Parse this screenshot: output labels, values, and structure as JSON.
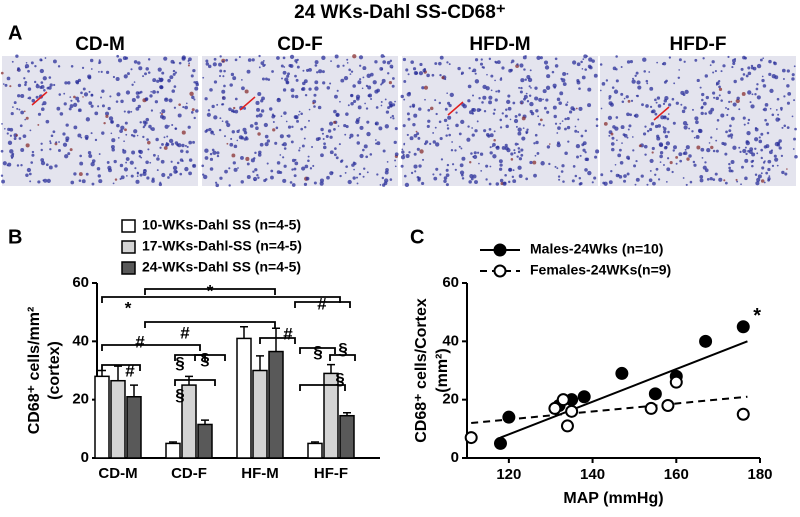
{
  "title": "24 WKs-Dahl SS-CD68⁺",
  "panel_a": {
    "label": "A",
    "images": [
      "CD-M",
      "CD-F",
      "HFD-M",
      "HFD-F"
    ]
  },
  "chart_data": [
    {
      "type": "bar",
      "panel": "B",
      "ylabel": "CD68⁺ cells/mm²",
      "ylabel2": "(cortex)",
      "categories": [
        "CD-M",
        "CD-F",
        "HF-M",
        "HF-F"
      ],
      "series": [
        {
          "name": "10-WKs-Dahl SS (n=4-5)",
          "color": "#ffffff",
          "values": [
            28,
            5,
            41,
            5
          ],
          "errors": [
            2,
            0.5,
            4,
            0.5
          ]
        },
        {
          "name": "17-WKs-Dahl-SS (n=4-5)",
          "color": "#d4d4d4",
          "values": [
            26.5,
            25,
            30,
            29
          ],
          "errors": [
            5,
            3,
            5,
            3
          ]
        },
        {
          "name": "24-WKs-Dahl SS (n=4-5)",
          "color": "#595959",
          "values": [
            21,
            11.5,
            36.5,
            14.5
          ],
          "errors": [
            4,
            1.5,
            8,
            1
          ]
        }
      ],
      "ylim": [
        0,
        60
      ],
      "yticks": [
        0,
        20,
        40,
        60
      ],
      "annotations": [
        "*",
        "*",
        "#",
        "#",
        "#",
        "#",
        "#",
        "§",
        "§",
        "§",
        "§",
        "§",
        "§"
      ]
    },
    {
      "type": "scatter",
      "panel": "C",
      "xlabel": "MAP (mmHg)",
      "ylabel": "CD68⁺ cells/Cortex",
      "ylabel2": "(mm²)",
      "series": [
        {
          "name": "Males-24Wks (n=10)",
          "color": "#000000",
          "filled": true,
          "x": [
            118,
            120,
            132,
            135,
            138,
            147,
            155,
            160,
            167,
            176
          ],
          "values": [
            5,
            14,
            18,
            20,
            21,
            29,
            22,
            28,
            40,
            45
          ],
          "trend_x": [
            118,
            177
          ],
          "trend_values": [
            7,
            40
          ]
        },
        {
          "name": "Females-24WKs(n=9)",
          "color": "#000000",
          "filled": false,
          "x": [
            111,
            131,
            133,
            134,
            135,
            154,
            158,
            160,
            176
          ],
          "values": [
            7,
            17,
            20,
            11,
            16,
            17,
            18,
            26,
            15
          ],
          "trend_x": [
            111,
            177
          ],
          "trend_values": [
            12,
            21
          ]
        }
      ],
      "xlim": [
        110,
        180
      ],
      "xticks": [
        120,
        140,
        160,
        180
      ],
      "ylim": [
        0,
        60
      ],
      "yticks": [
        0,
        20,
        40,
        60
      ],
      "annotations": [
        "*"
      ]
    }
  ]
}
